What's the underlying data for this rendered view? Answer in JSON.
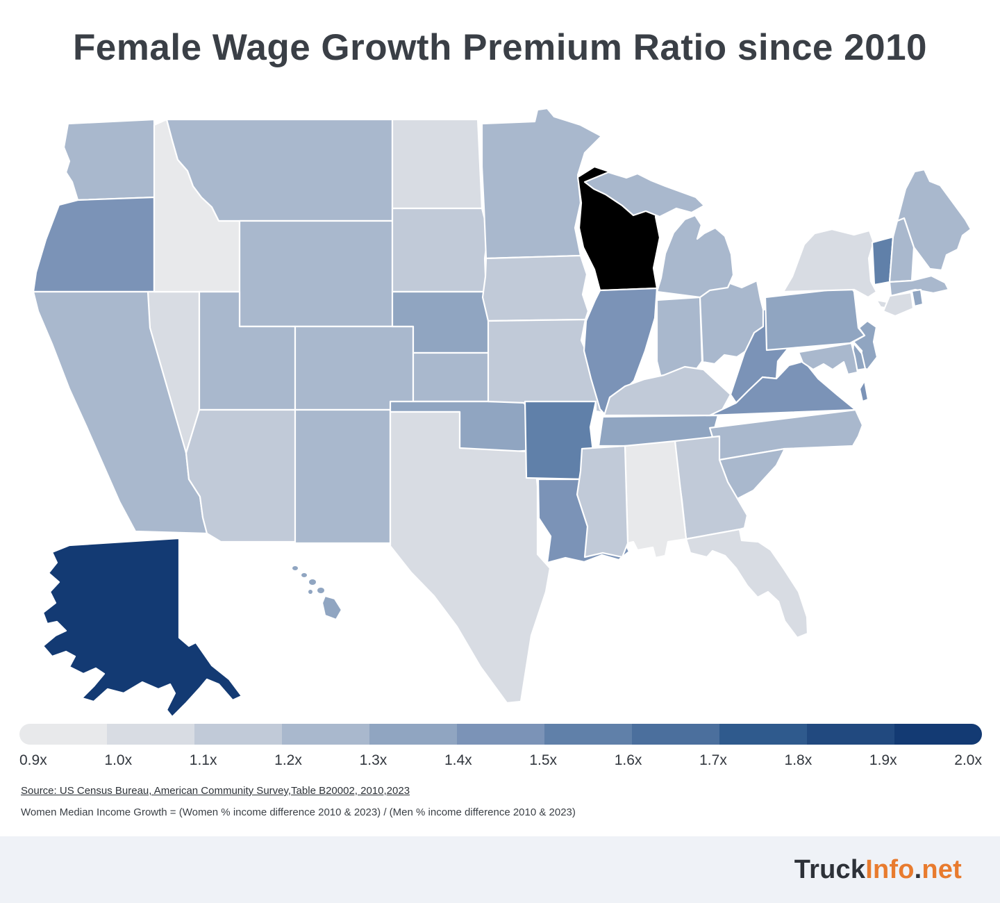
{
  "title": "Female Wage Growth Premium Ratio since 2010",
  "source_line": "Source: US Census Bureau, American Community Survey,Table B20002, 2010,2023",
  "formula_line": "Women Median Income Growth = (Women % income difference 2010 & 2023) / (Men % income difference 2010 & 2023)",
  "branding": {
    "truck": "Truck",
    "info": "Info",
    "dot": ".",
    "net": "net"
  },
  "colors": {
    "background": "#ffffff",
    "footer_bg": "#eff2f7",
    "title_text": "#3a3f46",
    "body_text": "#2c3137",
    "brand_dark": "#2d3138",
    "brand_orange": "#e87b2e",
    "state_border": "#ffffff"
  },
  "chart_data": {
    "type": "heatmap",
    "subtype": "us-choropleth-map",
    "title": "Female Wage Growth Premium Ratio since 2010",
    "unit_suffix": "x",
    "legend": {
      "position": "bottom",
      "domain": [
        0.9,
        2.0
      ],
      "step": 0.1,
      "tick_labels": [
        "0.9x",
        "1.0x",
        "1.1x",
        "1.2x",
        "1.3x",
        "1.4x",
        "1.5x",
        "1.6x",
        "1.7x",
        "1.8x",
        "1.9x",
        "2.0x"
      ],
      "colors": [
        "#e8e9eb",
        "#d8dce3",
        "#c1cad8",
        "#a9b8cd",
        "#90a5c1",
        "#7b93b7",
        "#6080a9",
        "#4b6f9d",
        "#2f5a8d",
        "#21497f",
        "#133a73"
      ]
    },
    "states": [
      {
        "code": "AL",
        "name": "Alabama",
        "value": 0.95
      },
      {
        "code": "AK",
        "name": "Alaska",
        "value": 1.95
      },
      {
        "code": "AZ",
        "name": "Arizona",
        "value": 1.15
      },
      {
        "code": "AR",
        "name": "Arkansas",
        "value": 1.55
      },
      {
        "code": "CA",
        "name": "California",
        "value": 1.22
      },
      {
        "code": "CO",
        "name": "Colorado",
        "value": 1.24
      },
      {
        "code": "CT",
        "name": "Connecticut",
        "value": 1.05
      },
      {
        "code": "DE",
        "name": "Delaware",
        "value": 1.35
      },
      {
        "code": "FL",
        "name": "Florida",
        "value": 1.08
      },
      {
        "code": "GA",
        "name": "Georgia",
        "value": 1.16
      },
      {
        "code": "HI",
        "name": "Hawaii",
        "value": 1.35
      },
      {
        "code": "ID",
        "name": "Idaho",
        "value": 0.95
      },
      {
        "code": "IL",
        "name": "Illinois",
        "value": 1.45
      },
      {
        "code": "IN",
        "name": "Indiana",
        "value": 1.22
      },
      {
        "code": "IA",
        "name": "Iowa",
        "value": 1.14
      },
      {
        "code": "KS",
        "name": "Kansas",
        "value": 1.26
      },
      {
        "code": "KY",
        "name": "Kentucky",
        "value": 1.13
      },
      {
        "code": "LA",
        "name": "Louisiana",
        "value": 1.45
      },
      {
        "code": "ME",
        "name": "Maine",
        "value": 1.24
      },
      {
        "code": "MD",
        "name": "Maryland",
        "value": 1.27
      },
      {
        "code": "MA",
        "name": "Massachusetts",
        "value": 1.2
      },
      {
        "code": "MI",
        "name": "Michigan",
        "value": 1.24
      },
      {
        "code": "MN",
        "name": "Minnesota",
        "value": 1.22
      },
      {
        "code": "MS",
        "name": "Mississippi",
        "value": 1.15
      },
      {
        "code": "MO",
        "name": "Missouri",
        "value": 1.12
      },
      {
        "code": "MT",
        "name": "Montana",
        "value": 1.21
      },
      {
        "code": "NE",
        "name": "Nebraska",
        "value": 1.32
      },
      {
        "code": "NV",
        "name": "Nevada",
        "value": 1.02
      },
      {
        "code": "NH",
        "name": "New Hampshire",
        "value": 1.25
      },
      {
        "code": "NJ",
        "name": "New Jersey",
        "value": 1.32
      },
      {
        "code": "NM",
        "name": "New Mexico",
        "value": 1.25
      },
      {
        "code": "NY",
        "name": "New York",
        "value": 1.02
      },
      {
        "code": "NC",
        "name": "North Carolina",
        "value": 1.2
      },
      {
        "code": "ND",
        "name": "North Dakota",
        "value": 1.08
      },
      {
        "code": "OH",
        "name": "Ohio",
        "value": 1.23
      },
      {
        "code": "OK",
        "name": "Oklahoma",
        "value": 1.35
      },
      {
        "code": "OR",
        "name": "Oregon",
        "value": 1.42
      },
      {
        "code": "PA",
        "name": "Pennsylvania",
        "value": 1.35
      },
      {
        "code": "RI",
        "name": "Rhode Island",
        "value": 1.35
      },
      {
        "code": "SC",
        "name": "South Carolina",
        "value": 1.28
      },
      {
        "code": "SD",
        "name": "South Dakota",
        "value": 1.15
      },
      {
        "code": "TN",
        "name": "Tennessee",
        "value": 1.33
      },
      {
        "code": "TX",
        "name": "Texas",
        "value": 1.08
      },
      {
        "code": "UT",
        "name": "Utah",
        "value": 1.28
      },
      {
        "code": "VT",
        "name": "Vermont",
        "value": 1.55
      },
      {
        "code": "VA",
        "name": "Virginia",
        "value": 1.42
      },
      {
        "code": "WA",
        "name": "Washington",
        "value": 1.28
      },
      {
        "code": "WV",
        "name": "West Virginia",
        "value": 1.43
      },
      {
        "code": "WY",
        "name": "Wyoming",
        "value": 1.2
      }
    ]
  }
}
